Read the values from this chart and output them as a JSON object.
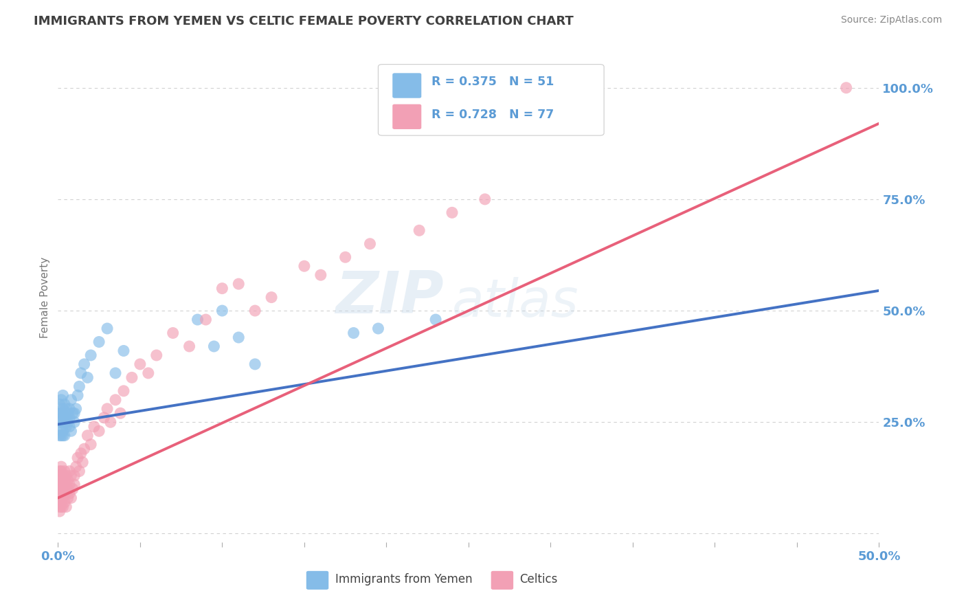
{
  "title": "IMMIGRANTS FROM YEMEN VS CELTIC FEMALE POVERTY CORRELATION CHART",
  "source": "Source: ZipAtlas.com",
  "ylabel": "Female Poverty",
  "xlim": [
    0.0,
    0.5
  ],
  "ylim": [
    -0.02,
    1.08
  ],
  "ytick_positions": [
    0.0,
    0.25,
    0.5,
    0.75,
    1.0
  ],
  "ytick_labels": [
    "",
    "25.0%",
    "50.0%",
    "75.0%",
    "100.0%"
  ],
  "blue_R": 0.375,
  "blue_N": 51,
  "pink_R": 0.728,
  "pink_N": 77,
  "blue_color": "#85bce8",
  "pink_color": "#f2a0b5",
  "blue_line_color": "#4472c4",
  "pink_line_color": "#e8607a",
  "title_color": "#404040",
  "axis_color": "#5b9bd5",
  "legend_R_color": "#5b9bd5",
  "grid_color": "#cccccc",
  "background_color": "#ffffff",
  "blue_line_x0": 0.0,
  "blue_line_y0": 0.245,
  "blue_line_x1": 0.5,
  "blue_line_y1": 0.545,
  "pink_line_x0": 0.0,
  "pink_line_y0": 0.08,
  "pink_line_x1": 0.5,
  "pink_line_y1": 0.92,
  "blue_scatter_x": [
    0.001,
    0.001,
    0.001,
    0.001,
    0.002,
    0.002,
    0.002,
    0.002,
    0.002,
    0.003,
    0.003,
    0.003,
    0.003,
    0.003,
    0.003,
    0.004,
    0.004,
    0.004,
    0.004,
    0.005,
    0.005,
    0.005,
    0.006,
    0.006,
    0.007,
    0.007,
    0.007,
    0.008,
    0.008,
    0.009,
    0.01,
    0.01,
    0.011,
    0.012,
    0.013,
    0.014,
    0.016,
    0.018,
    0.02,
    0.025,
    0.03,
    0.035,
    0.04,
    0.085,
    0.095,
    0.1,
    0.11,
    0.12,
    0.18,
    0.195,
    0.23
  ],
  "blue_scatter_y": [
    0.27,
    0.25,
    0.22,
    0.29,
    0.24,
    0.27,
    0.3,
    0.22,
    0.26,
    0.25,
    0.28,
    0.31,
    0.22,
    0.27,
    0.23,
    0.25,
    0.26,
    0.22,
    0.29,
    0.24,
    0.26,
    0.28,
    0.25,
    0.27,
    0.24,
    0.28,
    0.26,
    0.23,
    0.3,
    0.27,
    0.25,
    0.27,
    0.28,
    0.31,
    0.33,
    0.36,
    0.38,
    0.35,
    0.4,
    0.43,
    0.46,
    0.36,
    0.41,
    0.48,
    0.42,
    0.5,
    0.44,
    0.38,
    0.45,
    0.46,
    0.48
  ],
  "pink_scatter_x": [
    0.001,
    0.001,
    0.001,
    0.001,
    0.001,
    0.001,
    0.001,
    0.001,
    0.001,
    0.001,
    0.002,
    0.002,
    0.002,
    0.002,
    0.002,
    0.002,
    0.002,
    0.002,
    0.003,
    0.003,
    0.003,
    0.003,
    0.003,
    0.004,
    0.004,
    0.004,
    0.004,
    0.005,
    0.005,
    0.005,
    0.005,
    0.006,
    0.006,
    0.006,
    0.007,
    0.007,
    0.007,
    0.008,
    0.008,
    0.009,
    0.01,
    0.01,
    0.011,
    0.012,
    0.013,
    0.014,
    0.015,
    0.016,
    0.018,
    0.02,
    0.022,
    0.025,
    0.028,
    0.03,
    0.032,
    0.035,
    0.038,
    0.04,
    0.045,
    0.05,
    0.055,
    0.06,
    0.07,
    0.08,
    0.09,
    0.1,
    0.11,
    0.12,
    0.13,
    0.15,
    0.16,
    0.175,
    0.19,
    0.22,
    0.24,
    0.26,
    0.48
  ],
  "pink_scatter_y": [
    0.1,
    0.12,
    0.08,
    0.14,
    0.06,
    0.09,
    0.11,
    0.07,
    0.13,
    0.05,
    0.08,
    0.11,
    0.14,
    0.06,
    0.1,
    0.12,
    0.07,
    0.15,
    0.09,
    0.11,
    0.06,
    0.13,
    0.08,
    0.1,
    0.12,
    0.07,
    0.14,
    0.09,
    0.11,
    0.06,
    0.13,
    0.08,
    0.1,
    0.12,
    0.09,
    0.11,
    0.14,
    0.08,
    0.13,
    0.1,
    0.11,
    0.13,
    0.15,
    0.17,
    0.14,
    0.18,
    0.16,
    0.19,
    0.22,
    0.2,
    0.24,
    0.23,
    0.26,
    0.28,
    0.25,
    0.3,
    0.27,
    0.32,
    0.35,
    0.38,
    0.36,
    0.4,
    0.45,
    0.42,
    0.48,
    0.55,
    0.56,
    0.5,
    0.53,
    0.6,
    0.58,
    0.62,
    0.65,
    0.68,
    0.72,
    0.75,
    1.0
  ]
}
